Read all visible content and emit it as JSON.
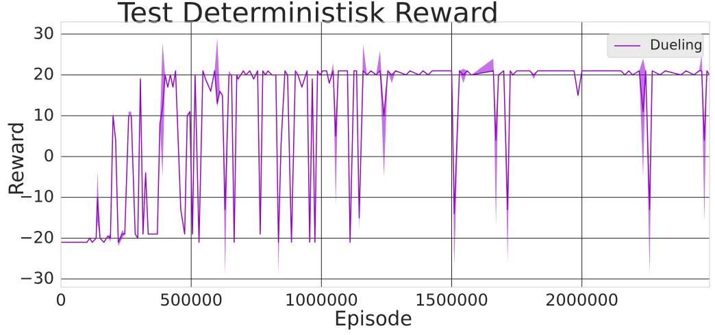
{
  "chart_data": {
    "type": "line",
    "title": "Test Deterministisk Reward",
    "x_label": "Episode",
    "y_label": "Reward",
    "x": [
      0,
      100000,
      110000,
      120000,
      135000,
      140000,
      150000,
      165000,
      180000,
      190000,
      200000,
      210000,
      220000,
      235000,
      245000,
      260000,
      270000,
      285000,
      295000,
      305000,
      315000,
      325000,
      335000,
      370000,
      380000,
      390000,
      400000,
      410000,
      420000,
      430000,
      440000,
      460000,
      475000,
      485000,
      495000,
      505000,
      515000,
      530000,
      545000,
      555000,
      575000,
      590000,
      600000,
      610000,
      620000,
      630000,
      645000,
      655000,
      665000,
      675000,
      680000,
      700000,
      710000,
      725000,
      740000,
      755000,
      765000,
      775000,
      785000,
      795000,
      810000,
      825000,
      835000,
      845000,
      860000,
      870000,
      885000,
      900000,
      910000,
      925000,
      945000,
      955000,
      965000,
      975000,
      985000,
      995000,
      1005000,
      1020000,
      1030000,
      1045000,
      1055000,
      1065000,
      1100000,
      1110000,
      1125000,
      1135000,
      1145000,
      1160000,
      1175000,
      1190000,
      1210000,
      1225000,
      1240000,
      1255000,
      1270000,
      1285000,
      1325000,
      1340000,
      1375000,
      1390000,
      1410000,
      1425000,
      1500000,
      1510000,
      1530000,
      1545000,
      1560000,
      1575000,
      1660000,
      1670000,
      1680000,
      1700000,
      1715000,
      1725000,
      1735000,
      1750000,
      1800000,
      1815000,
      1830000,
      1970000,
      1985000,
      2000000,
      2150000,
      2165000,
      2180000,
      2195000,
      2220000,
      2235000,
      2245000,
      2260000,
      2270000,
      2300000,
      2320000,
      2380000,
      2400000,
      2430000,
      2450000,
      2460000,
      2470000,
      2480000,
      2490000
    ],
    "series": [
      {
        "name": "Dueling",
        "color": "#9400d3",
        "values": [
          -21,
          -21,
          -20,
          -21,
          -20,
          -10,
          -20,
          -21,
          -19.5,
          -20,
          10,
          4,
          -21,
          -19,
          -19,
          10,
          10,
          -19,
          -20,
          19,
          -19,
          -4,
          -19,
          -19,
          8,
          12,
          20,
          17,
          20,
          17,
          21,
          -13,
          -19,
          10,
          11,
          -19,
          20,
          -21,
          21,
          19,
          16,
          21,
          13,
          16,
          15,
          -13,
          20,
          20,
          -21,
          20,
          19,
          21,
          20,
          21,
          19,
          21,
          -19,
          21,
          20,
          21,
          20,
          20,
          -21,
          3,
          21,
          20,
          -21,
          21,
          20,
          17,
          21,
          -21,
          19,
          -21,
          21,
          20,
          21,
          21,
          18,
          21,
          5,
          21,
          21,
          -21,
          21,
          21,
          -15,
          21,
          20,
          21,
          20,
          21,
          10,
          21,
          20,
          21,
          20,
          21,
          20,
          21,
          20,
          21,
          21,
          -14,
          21,
          20,
          21,
          20,
          21,
          4,
          20,
          21,
          -13,
          21,
          20,
          21,
          21,
          20,
          21,
          21,
          15,
          21,
          21,
          20,
          21,
          20,
          21,
          11,
          21,
          -13,
          21,
          20,
          21,
          20,
          21,
          20,
          21,
          21,
          4,
          21,
          20
        ]
      }
    ],
    "band": {
      "color": "#9400d3",
      "lower": [
        -21,
        -21,
        -20,
        -21,
        -20,
        -16,
        -20,
        -21,
        -19.5,
        -21,
        10,
        4,
        -22,
        -20,
        -19,
        10,
        10,
        -19,
        -20,
        19,
        -19,
        -4,
        -19,
        -19,
        8,
        -5,
        20,
        17,
        20,
        17,
        21,
        -13,
        -19,
        10,
        11,
        -19,
        20,
        -21,
        21,
        19,
        16,
        21,
        12,
        16,
        15,
        -29,
        20,
        20,
        -21,
        20,
        19,
        21,
        20,
        21,
        19,
        21,
        -19,
        21,
        20,
        21,
        20,
        20,
        -29,
        3,
        21,
        20,
        -21,
        21,
        20,
        17,
        21,
        -21,
        19,
        -21,
        21,
        20,
        21,
        21,
        18,
        21,
        -12,
        21,
        21,
        -21,
        21,
        21,
        -18,
        21,
        20,
        21,
        20,
        21,
        -5,
        21,
        18,
        21,
        20,
        21,
        20,
        21,
        20,
        21,
        21,
        -27,
        21,
        18,
        21,
        20,
        21,
        -17,
        20,
        21,
        -26,
        21,
        20,
        21,
        21,
        19,
        21,
        21,
        15,
        21,
        21,
        20,
        21,
        20,
        21,
        -5,
        21,
        -29,
        21,
        20,
        21,
        20,
        21,
        20,
        21,
        21,
        -16,
        21,
        20
      ],
      "upper": [
        -21,
        -21,
        -20,
        -21,
        -20,
        -3.5,
        -20,
        -21,
        -19.5,
        -19,
        11,
        4,
        -21,
        -18,
        -19,
        11,
        11,
        -19,
        -20,
        19,
        -19,
        -4,
        -19,
        -19,
        8,
        28,
        20,
        17,
        20,
        17,
        21,
        -13,
        -19,
        10,
        11,
        -19,
        20,
        -21,
        21,
        19,
        16,
        21,
        29,
        16,
        15,
        -13,
        21,
        20,
        -21,
        20,
        19,
        21,
        20,
        21,
        19,
        21,
        -19,
        21,
        20,
        21,
        20,
        20,
        -21,
        3,
        21,
        20,
        -21,
        21,
        20,
        17,
        21,
        -21,
        19,
        -21,
        21,
        20,
        21,
        21,
        18,
        23,
        5,
        21,
        21,
        -21,
        21,
        21,
        -15,
        27.5,
        20,
        21,
        20,
        26,
        10,
        21,
        20,
        21,
        20,
        21,
        20,
        21,
        20,
        21,
        21,
        -14,
        21,
        21.5,
        21,
        20,
        24,
        4,
        20,
        21,
        -13,
        21,
        20,
        21,
        21,
        20,
        21,
        21,
        15,
        21,
        21,
        20,
        21,
        20,
        21,
        24,
        21,
        -13,
        21,
        20,
        21,
        20,
        21,
        20,
        21,
        25,
        4,
        21,
        20
      ]
    },
    "xlim": [
      0,
      2490000
    ],
    "ylim": [
      -32,
      33
    ],
    "xticks": [
      0,
      500000,
      1000000,
      1500000,
      2000000
    ],
    "yticks": [
      {
        "value": -30,
        "label": "−30"
      },
      {
        "value": -20,
        "label": "−20"
      },
      {
        "value": -10,
        "label": "−10"
      },
      0,
      10,
      20,
      30
    ],
    "grid": true,
    "legend": "upper right"
  }
}
